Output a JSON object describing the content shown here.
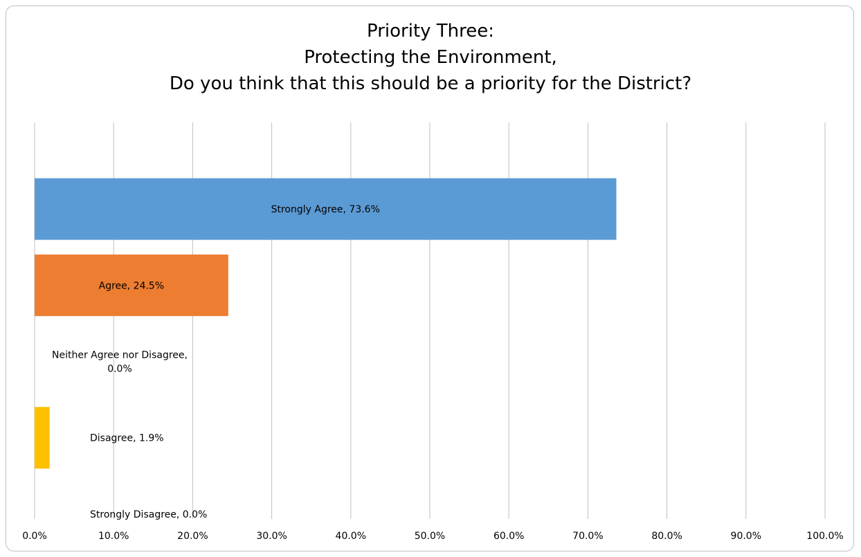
{
  "chart_data": {
    "type": "bar",
    "orientation": "horizontal",
    "title_lines": [
      "Priority Three:",
      "Protecting the Environment,",
      "Do you think that this should be a priority for the District?"
    ],
    "xlim": [
      0,
      100
    ],
    "x_ticks": [
      "0.0%",
      "10.0%",
      "20.0%",
      "30.0%",
      "40.0%",
      "50.0%",
      "60.0%",
      "70.0%",
      "80.0%",
      "90.0%",
      "100.0%"
    ],
    "grid": true,
    "series": [
      {
        "category": "Strongly Agree",
        "value": 73.6,
        "label_lines": [
          "Strongly Agree, 73.6%"
        ],
        "color": "#5b9bd5"
      },
      {
        "category": "Agree",
        "value": 24.5,
        "label_lines": [
          "Agree, 24.5%"
        ],
        "color": "#ed7d31"
      },
      {
        "category": "Neither Agree nor Disagree",
        "value": 0.0,
        "label_lines": [
          "Neither Agree nor Disagree,",
          "0.0%"
        ],
        "color": "#a5a5a5"
      },
      {
        "category": "Disagree",
        "value": 1.9,
        "label_lines": [
          "Disagree, 1.9%"
        ],
        "color": "#ffc000"
      },
      {
        "category": "Strongly Disagree",
        "value": 0.0,
        "label_lines": [
          "Strongly Disagree, 0.0%"
        ],
        "color": "#4472c4"
      }
    ]
  }
}
